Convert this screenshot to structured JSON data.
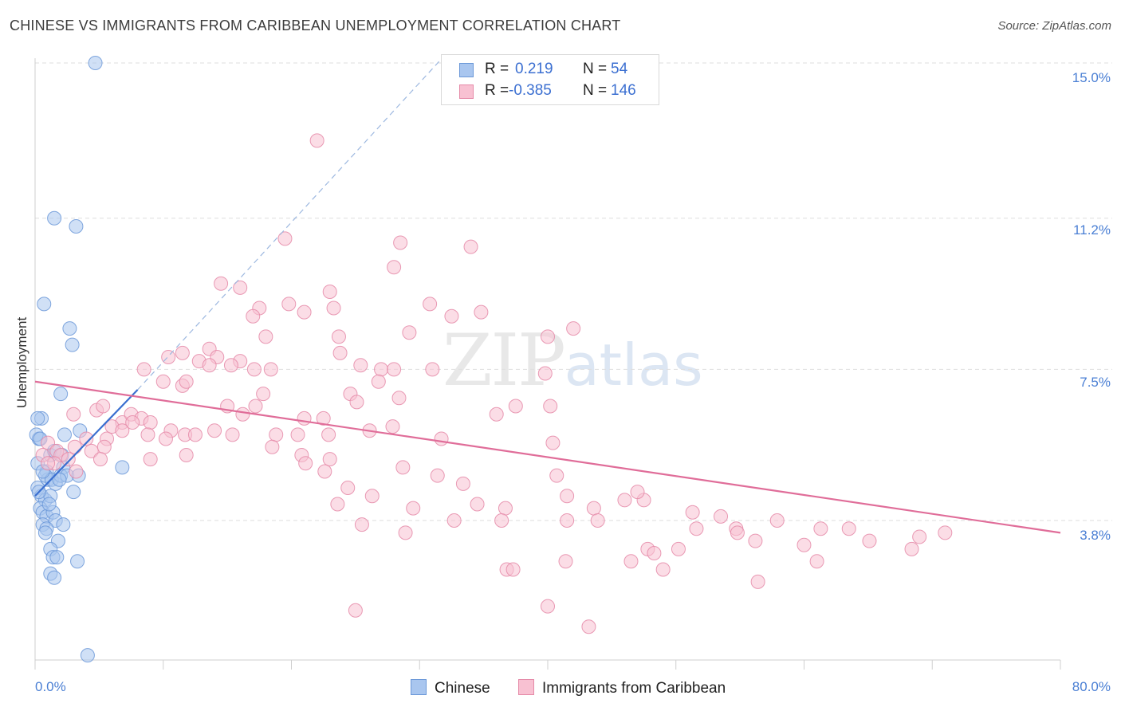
{
  "title": "CHINESE VS IMMIGRANTS FROM CARIBBEAN UNEMPLOYMENT CORRELATION CHART",
  "source": "Source: ZipAtlas.com",
  "watermark": {
    "zip": "ZIP",
    "atlas": "atlas"
  },
  "legend": {
    "rows": [
      {
        "r_label": "R =",
        "r_value": "0.219",
        "n_label": "N =",
        "n_value": "54",
        "color": "#a9c6ef",
        "border": "#6b98d8"
      },
      {
        "r_label": "R =",
        "r_value": "-0.385",
        "n_label": "N =",
        "n_value": "146",
        "color": "#f8c1d2",
        "border": "#e58aa8"
      }
    ],
    "bottom": [
      {
        "label": "Chinese",
        "color": "#a9c6ef",
        "border": "#6b98d8"
      },
      {
        "label": "Immigrants from Caribbean",
        "color": "#f8c1d2",
        "border": "#e58aa8"
      }
    ]
  },
  "chart_data": {
    "type": "scatter",
    "title": "CHINESE VS IMMIGRANTS FROM CARIBBEAN UNEMPLOYMENT CORRELATION CHART",
    "xlabel": "",
    "ylabel": "Unemployment",
    "xlim": [
      0,
      80
    ],
    "ylim": [
      0,
      16
    ],
    "x_tick_labels": [
      "0.0%",
      "80.0%"
    ],
    "y_ticks": [
      3.8,
      7.5,
      11.2,
      15.0
    ],
    "y_tick_labels": [
      "3.8%",
      "7.5%",
      "11.2%",
      "15.0%"
    ],
    "grid": true,
    "legend_position": "top-center",
    "series": [
      {
        "name": "Chinese",
        "color": "#a9c6ef",
        "edge": "#6b98d8",
        "R": 0.219,
        "N": 54,
        "trend": {
          "x": [
            0,
            8
          ],
          "y": [
            4.4,
            7.0
          ],
          "dashed_extension": {
            "x": [
              8,
              32
            ],
            "y": [
              7.0,
              15.2
            ]
          }
        },
        "points": [
          [
            4.7,
            15.0
          ],
          [
            1.5,
            11.2
          ],
          [
            3.2,
            11.0
          ],
          [
            0.7,
            9.1
          ],
          [
            2.7,
            8.5
          ],
          [
            2.9,
            8.1
          ],
          [
            2.0,
            6.9
          ],
          [
            0.5,
            6.3
          ],
          [
            0.2,
            6.3
          ],
          [
            0.3,
            5.8
          ],
          [
            0.1,
            5.9
          ],
          [
            0.4,
            5.8
          ],
          [
            2.3,
            5.9
          ],
          [
            3.5,
            6.0
          ],
          [
            1.2,
            5.4
          ],
          [
            1.5,
            5.5
          ],
          [
            2.2,
            5.1
          ],
          [
            0.9,
            5.0
          ],
          [
            1.0,
            4.8
          ],
          [
            0.8,
            4.9
          ],
          [
            1.3,
            4.8
          ],
          [
            1.6,
            4.7
          ],
          [
            2.0,
            4.9
          ],
          [
            2.5,
            4.9
          ],
          [
            3.4,
            4.9
          ],
          [
            6.8,
            5.1
          ],
          [
            0.2,
            4.6
          ],
          [
            0.5,
            4.4
          ],
          [
            0.8,
            4.3
          ],
          [
            1.2,
            4.4
          ],
          [
            0.4,
            4.1
          ],
          [
            0.6,
            4.0
          ],
          [
            0.9,
            3.9
          ],
          [
            1.4,
            4.0
          ],
          [
            1.6,
            3.8
          ],
          [
            0.6,
            3.7
          ],
          [
            0.9,
            3.6
          ],
          [
            2.2,
            3.7
          ],
          [
            1.8,
            3.3
          ],
          [
            1.2,
            3.1
          ],
          [
            1.4,
            2.9
          ],
          [
            1.7,
            2.9
          ],
          [
            3.3,
            2.8
          ],
          [
            1.2,
            2.5
          ],
          [
            1.5,
            2.4
          ],
          [
            0.2,
            5.2
          ],
          [
            0.3,
            4.5
          ],
          [
            0.6,
            5.0
          ],
          [
            1.9,
            4.8
          ],
          [
            2.1,
            5.4
          ],
          [
            3.0,
            4.5
          ],
          [
            1.1,
            4.2
          ],
          [
            0.8,
            3.5
          ],
          [
            4.1,
            0.5
          ]
        ]
      },
      {
        "name": "Immigrants from Caribbean",
        "color": "#f8c1d2",
        "edge": "#e58aa8",
        "R": -0.385,
        "N": 146,
        "trend": {
          "x": [
            0,
            80
          ],
          "y": [
            7.2,
            3.5
          ]
        },
        "points": [
          [
            22.0,
            13.1
          ],
          [
            19.5,
            10.7
          ],
          [
            28.5,
            10.6
          ],
          [
            34.0,
            10.5
          ],
          [
            28.0,
            10.0
          ],
          [
            14.5,
            9.6
          ],
          [
            16.0,
            9.5
          ],
          [
            23.0,
            9.4
          ],
          [
            30.8,
            9.1
          ],
          [
            17.5,
            9.0
          ],
          [
            19.8,
            9.1
          ],
          [
            23.3,
            9.0
          ],
          [
            17.0,
            8.8
          ],
          [
            21.0,
            8.9
          ],
          [
            32.5,
            8.8
          ],
          [
            34.8,
            8.9
          ],
          [
            42.0,
            8.5
          ],
          [
            18.0,
            8.3
          ],
          [
            23.7,
            8.3
          ],
          [
            29.2,
            8.4
          ],
          [
            13.6,
            8.0
          ],
          [
            40.0,
            8.3
          ],
          [
            10.4,
            7.8
          ],
          [
            11.5,
            7.9
          ],
          [
            12.8,
            7.7
          ],
          [
            14.2,
            7.8
          ],
          [
            16.0,
            7.7
          ],
          [
            23.8,
            7.9
          ],
          [
            13.6,
            7.6
          ],
          [
            15.3,
            7.6
          ],
          [
            17.1,
            7.5
          ],
          [
            18.4,
            7.5
          ],
          [
            25.4,
            7.6
          ],
          [
            27.0,
            7.5
          ],
          [
            28.0,
            7.5
          ],
          [
            31.0,
            7.5
          ],
          [
            39.8,
            7.4
          ],
          [
            8.5,
            7.5
          ],
          [
            10.0,
            7.2
          ],
          [
            11.5,
            7.1
          ],
          [
            11.8,
            7.2
          ],
          [
            17.8,
            6.9
          ],
          [
            24.6,
            6.9
          ],
          [
            26.8,
            7.2
          ],
          [
            28.4,
            6.8
          ],
          [
            25.1,
            6.7
          ],
          [
            15.0,
            6.6
          ],
          [
            16.2,
            6.4
          ],
          [
            17.2,
            6.6
          ],
          [
            21.0,
            6.3
          ],
          [
            22.5,
            6.3
          ],
          [
            36.0,
            6.4
          ],
          [
            37.5,
            6.6
          ],
          [
            40.2,
            6.6
          ],
          [
            3.0,
            6.4
          ],
          [
            4.8,
            6.5
          ],
          [
            5.3,
            6.6
          ],
          [
            6.8,
            6.2
          ],
          [
            7.5,
            6.4
          ],
          [
            8.3,
            6.3
          ],
          [
            9.0,
            6.2
          ],
          [
            10.6,
            6.0
          ],
          [
            11.7,
            5.9
          ],
          [
            12.5,
            5.9
          ],
          [
            14.0,
            6.0
          ],
          [
            15.4,
            5.9
          ],
          [
            18.8,
            5.9
          ],
          [
            20.5,
            5.9
          ],
          [
            22.9,
            5.9
          ],
          [
            26.1,
            6.0
          ],
          [
            27.9,
            6.1
          ],
          [
            31.7,
            5.8
          ],
          [
            40.4,
            5.7
          ],
          [
            5.6,
            5.8
          ],
          [
            6.0,
            6.1
          ],
          [
            6.8,
            6.0
          ],
          [
            7.6,
            6.2
          ],
          [
            8.8,
            5.9
          ],
          [
            10.2,
            5.8
          ],
          [
            4.0,
            5.8
          ],
          [
            5.4,
            5.6
          ],
          [
            3.1,
            5.6
          ],
          [
            4.4,
            5.5
          ],
          [
            1.0,
            5.7
          ],
          [
            1.7,
            5.5
          ],
          [
            2.0,
            5.4
          ],
          [
            1.5,
            5.2
          ],
          [
            2.6,
            5.3
          ],
          [
            0.6,
            5.4
          ],
          [
            1.0,
            5.2
          ],
          [
            3.2,
            5.0
          ],
          [
            5.1,
            5.3
          ],
          [
            9.0,
            5.3
          ],
          [
            11.8,
            5.4
          ],
          [
            18.5,
            5.6
          ],
          [
            20.8,
            5.4
          ],
          [
            23.0,
            5.3
          ],
          [
            21.1,
            5.2
          ],
          [
            28.7,
            5.1
          ],
          [
            22.6,
            5.0
          ],
          [
            31.4,
            4.9
          ],
          [
            33.4,
            4.7
          ],
          [
            24.4,
            4.6
          ],
          [
            26.3,
            4.4
          ],
          [
            23.6,
            4.2
          ],
          [
            29.5,
            4.1
          ],
          [
            36.7,
            4.1
          ],
          [
            43.6,
            4.1
          ],
          [
            46.0,
            4.3
          ],
          [
            47.5,
            4.3
          ],
          [
            41.5,
            4.4
          ],
          [
            40.7,
            4.9
          ],
          [
            32.7,
            3.8
          ],
          [
            34.5,
            4.2
          ],
          [
            36.4,
            3.8
          ],
          [
            25.5,
            3.7
          ],
          [
            28.9,
            3.5
          ],
          [
            41.5,
            3.8
          ],
          [
            43.9,
            3.8
          ],
          [
            51.3,
            4.0
          ],
          [
            54.7,
            3.6
          ],
          [
            57.9,
            3.8
          ],
          [
            61.3,
            3.6
          ],
          [
            63.5,
            3.6
          ],
          [
            65.1,
            3.3
          ],
          [
            68.4,
            3.1
          ],
          [
            69.0,
            3.4
          ],
          [
            71.0,
            3.5
          ],
          [
            60.0,
            3.2
          ],
          [
            56.2,
            3.3
          ],
          [
            51.6,
            3.6
          ],
          [
            54.8,
            3.5
          ],
          [
            46.5,
            2.8
          ],
          [
            47.8,
            3.1
          ],
          [
            48.3,
            3.0
          ],
          [
            50.2,
            3.1
          ],
          [
            36.8,
            2.6
          ],
          [
            37.3,
            2.6
          ],
          [
            41.4,
            2.8
          ],
          [
            49.0,
            2.6
          ],
          [
            56.4,
            2.3
          ],
          [
            61.0,
            2.8
          ],
          [
            40.0,
            1.7
          ],
          [
            43.2,
            1.2
          ],
          [
            25.0,
            1.6
          ],
          [
            47.0,
            4.5
          ],
          [
            53.5,
            3.9
          ]
        ]
      }
    ]
  }
}
